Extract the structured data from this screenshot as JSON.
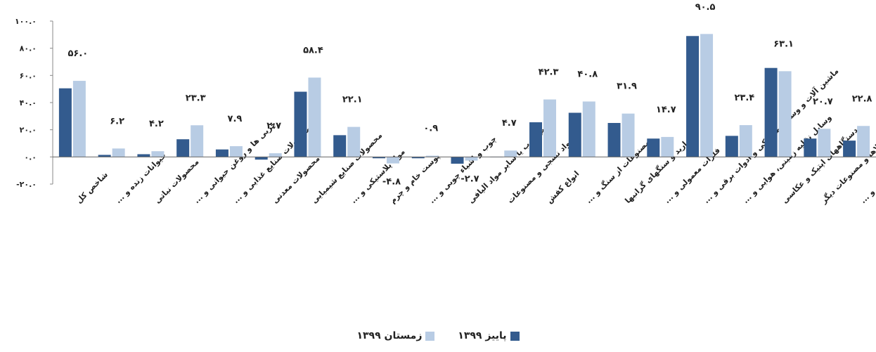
{
  "chart_data": {
    "type": "bar",
    "title": "",
    "xlabel": "",
    "ylabel": "",
    "ylim": [
      -20,
      100
    ],
    "y_ticks": [
      "-۲۰.۰",
      "۰.۰",
      "۲۰.۰",
      "۴۰.۰",
      "۶۰.۰",
      "۸۰.۰",
      "۱۰۰.۰"
    ],
    "grid": false,
    "legend_position": "bottom",
    "categories": [
      "شاخص کل",
      "حیوانات زنده و ...",
      "محصولات نباتی",
      "چربی ها و روغن حیوانی و ...",
      "محصولات صنایع غذایی و ...",
      "محصولات معدنی",
      "محصولات صنایع شیمیایی",
      "مواد پلاستیکی و ...",
      "پوست خام و چرم",
      "چوب و اشیاء چوبی و ...",
      "خمیر چوب یا سایر مواد الیافی",
      "مواد نسجی و مصنوعات",
      "انواع کفش",
      "مصنوعات از سنگ و ...",
      "مروارید و سنگهای گرانبها",
      "فلزات معمولی و ...",
      "ماشین آلات و وسایل مکانیکی و ادوات برقی و ...",
      "وسایل نقلیه زمینی، هوایی و ...",
      "دستگاههای اپتیک و عکاسی",
      "کالاها و مصنوعات دیگر",
      "اشیاء هنری، کلکسیون و ..."
    ],
    "series": [
      {
        "name": "پاییز ۱۳۹۹",
        "color": "#335b8e",
        "values": [
          50.5,
          1.5,
          2.0,
          13.0,
          5.5,
          -2.0,
          48.0,
          16.0,
          -1.0,
          -1.0,
          -5.0,
          0.0,
          25.5,
          32.5,
          25.0,
          13.5,
          89.0,
          15.5,
          65.5,
          13.5,
          12.0
        ]
      },
      {
        "name": "زمستان ۱۳۹۹",
        "color": "#b8cce4",
        "values": [
          56.0,
          6.2,
          4.2,
          23.3,
          7.9,
          2.7,
          58.4,
          22.1,
          -4.8,
          0.9,
          -2.7,
          4.7,
          42.3,
          40.8,
          31.9,
          14.7,
          90.5,
          23.4,
          63.1,
          20.7,
          22.8
        ]
      }
    ],
    "data_labels": [
      "۵۶.۰",
      "۶.۲",
      "۴.۲",
      "۲۳.۳",
      "۷.۹",
      "۲.۷",
      "۵۸.۴",
      "۲۲.۱",
      "-۴.۸",
      "۰.۹",
      "-۲.۷",
      "۴.۷",
      "۴۲.۳",
      "۴۰.۸",
      "۳۱.۹",
      "۱۴.۷",
      "۹۰.۵",
      "۲۳.۴",
      "۶۳.۱",
      "۲۰.۷",
      "۲۲.۸"
    ]
  }
}
